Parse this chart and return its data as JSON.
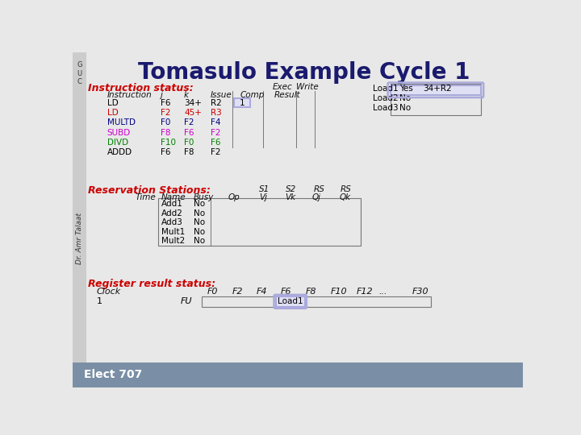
{
  "title": "Tomasulo Example Cycle 1",
  "title_color": "#1a1a6e",
  "title_fontsize": 20,
  "bg_color": "#e8e8e8",
  "footer_color": "#7a8fa6",
  "footer_text": "Elect 707",
  "sidebar_text": "Dr. Amr Talaat",
  "section_color": "#cc0000",
  "instr_colors": [
    "#000000",
    "#cc0000",
    "#000080",
    "#cc00cc",
    "#008000",
    "#000000"
  ],
  "instr_rows": [
    [
      "LD",
      "F6",
      "34+",
      "R2",
      "1"
    ],
    [
      "LD",
      "F2",
      "45+",
      "R3",
      ""
    ],
    [
      "MULTD",
      "F0",
      "F2",
      "F4",
      ""
    ],
    [
      "SUBD",
      "F8",
      "F6",
      "F2",
      ""
    ],
    [
      "DIVD",
      "F10",
      "F0",
      "F6",
      ""
    ],
    [
      "ADDD",
      "F6",
      "F8",
      "F2",
      ""
    ]
  ],
  "load_rows": [
    [
      "Load1",
      "Yes",
      "34+R2"
    ],
    [
      "Load2",
      "No",
      ""
    ],
    [
      "Load3",
      "No",
      ""
    ]
  ],
  "rs_rows": [
    [
      "Add1",
      "No"
    ],
    [
      "Add2",
      "No"
    ],
    [
      "Add3",
      "No"
    ],
    [
      "Mult1",
      "No"
    ],
    [
      "Mult2",
      "No"
    ]
  ],
  "reg_headers": [
    "F0",
    "F2",
    "F4",
    "F6",
    "F8",
    "F10",
    "F12",
    "...",
    "F30"
  ],
  "highlight_lavender": "#aaaadd",
  "highlight_light": "#e0e0f4"
}
